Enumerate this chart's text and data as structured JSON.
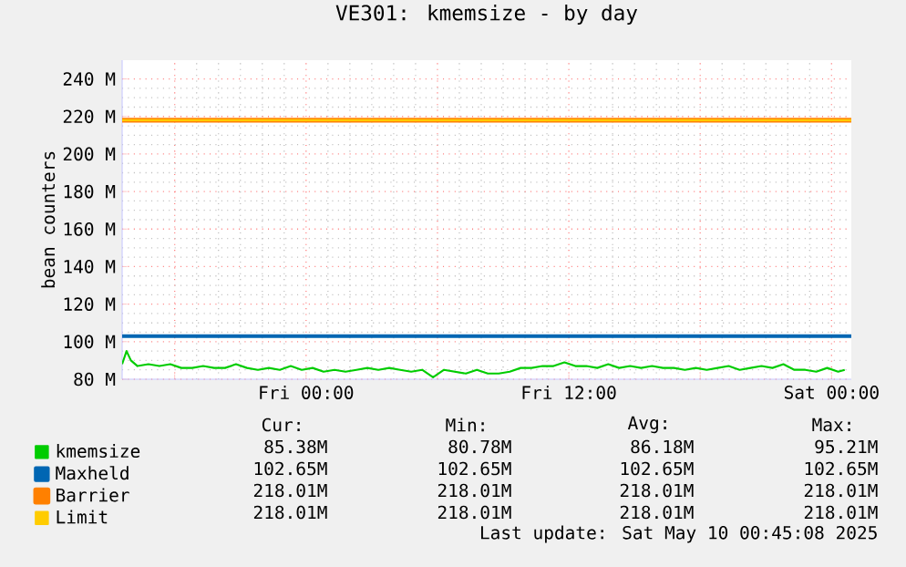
{
  "chart_data": {
    "type": "line",
    "title": "VE301: kmemsize - by day",
    "ylabel": "bean counters",
    "xlim": [
      "2025-05-08T15:36",
      "2025-05-10T00:54"
    ],
    "ylim": [
      80,
      250
    ],
    "xticks": [
      {
        "value": "2025-05-08T18:00",
        "label": null
      },
      {
        "value": "2025-05-09T00:00",
        "label": "Fri 00:00"
      },
      {
        "value": "2025-05-09T06:00",
        "label": null
      },
      {
        "value": "2025-05-09T12:00",
        "label": "Fri 12:00"
      },
      {
        "value": "2025-05-09T18:00",
        "label": null
      },
      {
        "value": "2025-05-10T00:00",
        "label": "Sat 00:00"
      }
    ],
    "yticks": [
      {
        "value": 80,
        "label": "80 M"
      },
      {
        "value": 100,
        "label": "100 M"
      },
      {
        "value": 120,
        "label": "120 M"
      },
      {
        "value": 140,
        "label": "140 M"
      },
      {
        "value": 160,
        "label": "160 M"
      },
      {
        "value": 180,
        "label": "180 M"
      },
      {
        "value": 200,
        "label": "200 M"
      },
      {
        "value": 220,
        "label": "220 M"
      },
      {
        "value": 240,
        "label": "240 M"
      }
    ],
    "grid": true,
    "legend": "bottom",
    "series": [
      {
        "name": "kmemsize",
        "color": "#00cc00",
        "x": [
          "2025-05-08T15:36",
          "2025-05-08T15:48",
          "2025-05-08T16:00",
          "2025-05-08T16:18",
          "2025-05-08T16:48",
          "2025-05-08T17:18",
          "2025-05-08T17:48",
          "2025-05-08T18:18",
          "2025-05-08T18:48",
          "2025-05-08T19:18",
          "2025-05-08T19:48",
          "2025-05-08T20:18",
          "2025-05-08T20:48",
          "2025-05-08T21:18",
          "2025-05-08T21:48",
          "2025-05-08T22:18",
          "2025-05-08T22:48",
          "2025-05-08T23:18",
          "2025-05-08T23:48",
          "2025-05-09T00:18",
          "2025-05-09T00:48",
          "2025-05-09T01:18",
          "2025-05-09T01:48",
          "2025-05-09T02:18",
          "2025-05-09T02:48",
          "2025-05-09T03:18",
          "2025-05-09T03:48",
          "2025-05-09T04:18",
          "2025-05-09T04:48",
          "2025-05-09T05:18",
          "2025-05-09T05:48",
          "2025-05-09T06:18",
          "2025-05-09T06:48",
          "2025-05-09T07:18",
          "2025-05-09T07:48",
          "2025-05-09T08:18",
          "2025-05-09T08:48",
          "2025-05-09T09:18",
          "2025-05-09T09:48",
          "2025-05-09T10:18",
          "2025-05-09T10:48",
          "2025-05-09T11:18",
          "2025-05-09T11:48",
          "2025-05-09T12:18",
          "2025-05-09T12:48",
          "2025-05-09T13:18",
          "2025-05-09T13:48",
          "2025-05-09T14:18",
          "2025-05-09T14:48",
          "2025-05-09T15:18",
          "2025-05-09T15:48",
          "2025-05-09T16:18",
          "2025-05-09T16:48",
          "2025-05-09T17:18",
          "2025-05-09T17:48",
          "2025-05-09T18:18",
          "2025-05-09T18:48",
          "2025-05-09T19:18",
          "2025-05-09T19:48",
          "2025-05-09T20:18",
          "2025-05-09T20:48",
          "2025-05-09T21:18",
          "2025-05-09T21:48",
          "2025-05-09T22:18",
          "2025-05-09T22:48",
          "2025-05-09T23:18",
          "2025-05-09T23:48",
          "2025-05-10T00:18",
          "2025-05-10T00:36"
        ],
        "values": [
          88,
          95,
          90,
          87,
          88,
          87,
          88,
          86,
          86,
          87,
          86,
          86,
          88,
          86,
          85,
          86,
          85,
          87,
          85,
          86,
          84,
          85,
          84,
          85,
          86,
          85,
          86,
          85,
          84,
          85,
          81,
          85,
          84,
          83,
          85,
          83,
          83,
          84,
          86,
          86,
          87,
          87,
          89,
          87,
          87,
          86,
          88,
          86,
          87,
          86,
          87,
          86,
          86,
          85,
          86,
          85,
          86,
          87,
          85,
          86,
          87,
          86,
          88,
          85,
          85,
          84,
          86,
          84,
          85
        ]
      },
      {
        "name": "Maxheld",
        "color": "#0066b3",
        "x": [
          "2025-05-08T15:36",
          "2025-05-10T00:54"
        ],
        "values": [
          103,
          103
        ]
      },
      {
        "name": "Barrier",
        "color": "#ff8000",
        "x": [
          "2025-05-08T15:36",
          "2025-05-10T00:54"
        ],
        "values": [
          218,
          218
        ]
      },
      {
        "name": "Limit",
        "color": "#ffcc00",
        "x": [
          "2025-05-08T15:36",
          "2025-05-10T00:54"
        ],
        "values": [
          218,
          218
        ]
      }
    ],
    "annotations": [
      "Cur:",
      "Min:",
      "Avg:",
      "Max:",
      "85.38M",
      "80.78M",
      "86.18M",
      "95.21M",
      "102.65M",
      "102.65M",
      "102.65M",
      "102.65M",
      "218.01M",
      "218.01M",
      "218.01M",
      "218.01M",
      "218.01M",
      "218.01M",
      "218.01M",
      "218.01M",
      "Last update: Sat May 10 00:45:08 2025"
    ]
  }
}
